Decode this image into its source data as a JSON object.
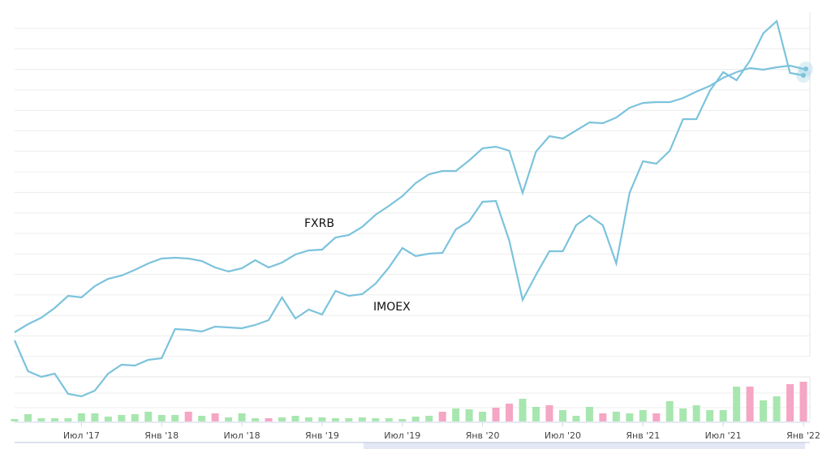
{
  "chart_data": [
    {
      "type": "line",
      "categories": [
        null,
        null,
        null,
        null,
        null,
        "Июл '17",
        null,
        null,
        null,
        null,
        null,
        "Янв '18",
        null,
        null,
        null,
        null,
        null,
        "Июл '18",
        null,
        null,
        null,
        null,
        null,
        "Янв '19",
        null,
        null,
        null,
        null,
        null,
        "Июл '19",
        null,
        null,
        null,
        null,
        null,
        "Янв '20",
        null,
        null,
        null,
        null,
        null,
        "Июл '20",
        null,
        null,
        null,
        null,
        null,
        "Янв '21",
        null,
        null,
        null,
        null,
        null,
        "Июл '21",
        null,
        null,
        null,
        null,
        null,
        "Янв '22"
      ],
      "series": [
        {
          "name": "FXRB",
          "color": "#7cc3dc",
          "values": [
            110,
            120,
            128,
            140,
            155,
            153,
            167,
            176,
            180,
            187,
            195,
            201,
            202,
            201,
            198,
            190,
            185,
            189,
            199,
            190,
            196,
            206,
            211,
            212,
            227,
            230,
            240,
            255,
            266,
            278,
            294,
            305,
            309,
            309,
            322,
            337,
            339,
            334,
            282,
            333,
            352,
            349,
            359,
            369,
            368,
            375,
            387,
            393,
            394,
            394,
            399,
            407,
            414,
            424,
            431,
            436,
            434,
            437,
            439,
            435
          ]
        },
        {
          "name": "IMOEX",
          "color": "#7cc3dc",
          "values": [
            100,
            62,
            55,
            59,
            34,
            31,
            38,
            59,
            70,
            69,
            76,
            78,
            114,
            113,
            111,
            117,
            116,
            115,
            119,
            125,
            153,
            127,
            138,
            132,
            161,
            155,
            157,
            170,
            190,
            214,
            204,
            207,
            208,
            237,
            247,
            271,
            272,
            223,
            150,
            181,
            210,
            210,
            242,
            254,
            242,
            195,
            282,
            321,
            318,
            334,
            373,
            373,
            408,
            431,
            421,
            445,
            479,
            494,
            430,
            427
          ]
        }
      ],
      "ylim": [
        0,
        505
      ]
    },
    {
      "type": "bar",
      "values": [
        3,
        9,
        4,
        4,
        4,
        10,
        10,
        6,
        8,
        9,
        12,
        8,
        8,
        12,
        7,
        10,
        5,
        10,
        4,
        4,
        5,
        7,
        5,
        5,
        4,
        4,
        5,
        4,
        4,
        3,
        6,
        7,
        12,
        16,
        15,
        12,
        17,
        22,
        28,
        18,
        20,
        14,
        7,
        18,
        10,
        12,
        10,
        14,
        10,
        25,
        16,
        20,
        14,
        14,
        43,
        43,
        26,
        31,
        46,
        49
      ],
      "colors": [
        "#a8e6b0",
        "#a8e6b0",
        "#a8e6b0",
        "#a8e6b0",
        "#a8e6b0",
        "#a8e6b0",
        "#a8e6b0",
        "#a8e6b0",
        "#a8e6b0",
        "#a8e6b0",
        "#a8e6b0",
        "#a8e6b0",
        "#a8e6b0",
        "#f5a6c4",
        "#a8e6b0",
        "#f5a6c4",
        "#a8e6b0",
        "#a8e6b0",
        "#a8e6b0",
        "#f5a6c4",
        "#a8e6b0",
        "#a8e6b0",
        "#a8e6b0",
        "#a8e6b0",
        "#a8e6b0",
        "#a8e6b0",
        "#a8e6b0",
        "#a8e6b0",
        "#a8e6b0",
        "#a8e6b0",
        "#a8e6b0",
        "#a8e6b0",
        "#f5a6c4",
        "#a8e6b0",
        "#a8e6b0",
        "#a8e6b0",
        "#f5a6c4",
        "#f5a6c4",
        "#a8e6b0",
        "#a8e6b0",
        "#f5a6c4",
        "#a8e6b0",
        "#a8e6b0",
        "#a8e6b0",
        "#f5a6c4",
        "#a8e6b0",
        "#a8e6b0",
        "#a8e6b0",
        "#f5a6c4",
        "#a8e6b0",
        "#a8e6b0",
        "#a8e6b0",
        "#a8e6b0",
        "#a8e6b0",
        "#a8e6b0",
        "#f5a6c4",
        "#a8e6b0",
        "#a8e6b0",
        "#f5a6c4",
        "#f5a6c4"
      ],
      "ylim": [
        0,
        55
      ]
    }
  ]
}
